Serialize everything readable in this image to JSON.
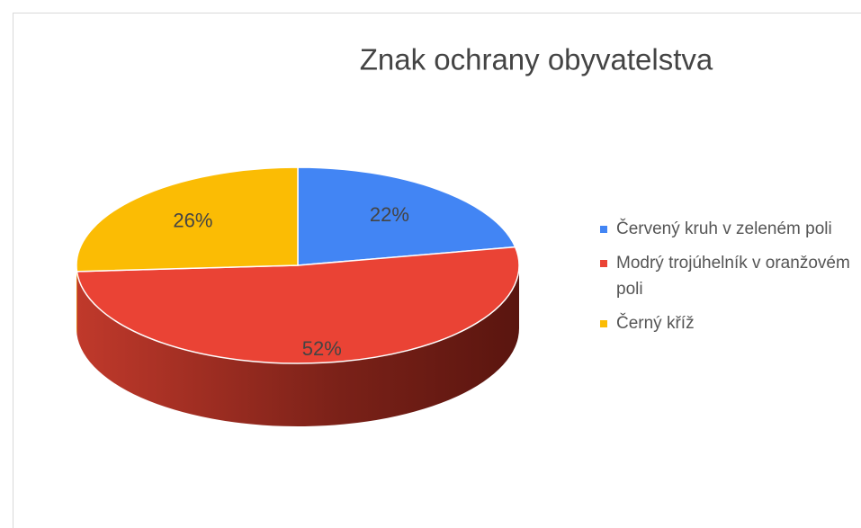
{
  "chart_data": {
    "type": "pie",
    "title": "Znak ochrany obyvatelstva",
    "categories": [
      "Červený kruh v zeleném poli",
      "Modrý trojúhelník v oranžovém poli",
      "Černý kříž"
    ],
    "values": [
      22,
      52,
      26
    ],
    "value_labels": [
      "22%",
      "52%",
      "26%"
    ],
    "colors": [
      "#4285f4",
      "#ea4335",
      "#fbbc04"
    ],
    "legend": "right",
    "three_d": true
  }
}
